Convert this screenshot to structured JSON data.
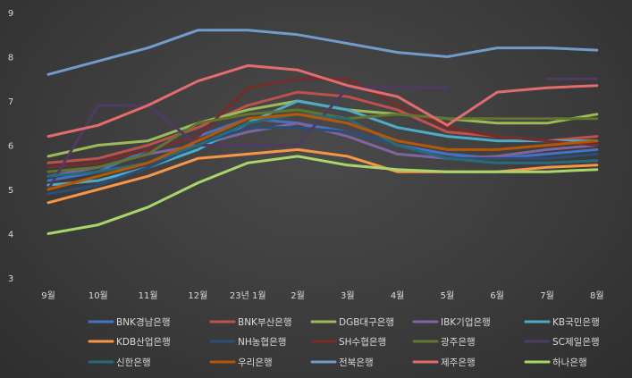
{
  "chart_data": {
    "type": "line",
    "title": "",
    "xlabel": "",
    "ylabel": "",
    "ylim": [
      3,
      9
    ],
    "yticks": [
      3,
      4,
      5,
      6,
      7,
      8,
      9
    ],
    "grid": false,
    "legend_position": "bottom",
    "categories": [
      "9월",
      "10월",
      "11월",
      "12월",
      "23년 1월",
      "2월",
      "3월",
      "4월",
      "5월",
      "6월",
      "7월",
      "8월"
    ],
    "series": [
      {
        "name": "BNK경남은행",
        "color": "#4472c4",
        "values": [
          5.2,
          5.4,
          5.9,
          6.2,
          6.6,
          6.5,
          6.3,
          6.0,
          5.8,
          5.7,
          5.8,
          5.9
        ]
      },
      {
        "name": "BNK부산은행",
        "color": "#c0504d",
        "values": [
          5.6,
          5.7,
          6.0,
          6.4,
          6.9,
          7.2,
          7.1,
          6.8,
          6.3,
          6.2,
          6.1,
          6.2
        ]
      },
      {
        "name": "DGB대구은행",
        "color": "#9bbb59",
        "values": [
          5.75,
          6.0,
          6.1,
          6.5,
          6.8,
          7.0,
          6.8,
          6.7,
          6.6,
          6.5,
          6.5,
          6.7
        ]
      },
      {
        "name": "IBK기업은행",
        "color": "#8064a2",
        "values": [
          5.3,
          5.5,
          5.8,
          6.0,
          6.3,
          6.5,
          6.2,
          5.8,
          5.7,
          5.75,
          5.9,
          6.0
        ]
      },
      {
        "name": "KB국민은행",
        "color": "#4bacc6",
        "values": [
          5.1,
          5.2,
          5.5,
          5.9,
          6.5,
          7.0,
          6.8,
          6.4,
          6.2,
          6.1,
          6.1,
          6.1
        ]
      },
      {
        "name": "KDB산업은행",
        "color": "#f79646",
        "values": [
          4.7,
          5.0,
          5.3,
          5.7,
          5.8,
          5.9,
          5.75,
          5.4,
          5.4,
          5.4,
          5.5,
          5.55
        ]
      },
      {
        "name": "NH농협은행",
        "color": "#2c4d75",
        "values": [
          4.9,
          5.1,
          5.5,
          6.0,
          6.4,
          6.4,
          6.3,
          6.0,
          5.7,
          5.7,
          5.7,
          5.8
        ]
      },
      {
        "name": "SH수협은행",
        "color": "#772c2a",
        "values": [
          5.5,
          5.6,
          5.9,
          6.2,
          7.3,
          7.5,
          7.5,
          6.9,
          6.4,
          6.2,
          6.1,
          6.0
        ]
      },
      {
        "name": "광주은행",
        "color": "#5f7530",
        "values": [
          5.4,
          5.5,
          5.8,
          6.5,
          6.7,
          6.8,
          6.6,
          6.7,
          6.6,
          6.6,
          6.6,
          6.6
        ]
      },
      {
        "name": "SC제일은행",
        "color": "#4d3b62",
        "values": [
          5.0,
          6.9,
          6.9,
          6.0,
          6.0,
          6.0,
          7.3,
          7.3,
          7.3,
          null,
          7.5,
          7.5
        ]
      },
      {
        "name": "신한은행",
        "color": "#276a7c",
        "values": [
          5.3,
          5.4,
          5.6,
          6.0,
          6.5,
          6.7,
          6.6,
          6.0,
          5.7,
          5.6,
          5.6,
          5.65
        ]
      },
      {
        "name": "우리은행",
        "color": "#b65708",
        "values": [
          5.0,
          5.3,
          5.6,
          6.1,
          6.6,
          6.7,
          6.5,
          6.1,
          5.9,
          5.9,
          6.0,
          6.1
        ]
      },
      {
        "name": "전북은행",
        "color": "#729aca",
        "values": [
          7.6,
          7.9,
          8.2,
          8.6,
          8.6,
          8.5,
          8.3,
          8.1,
          8.0,
          8.2,
          8.2,
          8.15
        ]
      },
      {
        "name": "제주은행",
        "color": "#e46c6c",
        "values": [
          6.2,
          6.45,
          6.9,
          7.45,
          7.8,
          7.7,
          7.35,
          7.1,
          6.45,
          7.2,
          7.3,
          7.35
        ]
      },
      {
        "name": "하나은행",
        "color": "#a9d66b",
        "values": [
          4.0,
          4.2,
          4.6,
          5.15,
          5.6,
          5.75,
          5.55,
          5.45,
          5.4,
          5.4,
          5.4,
          5.45
        ]
      }
    ]
  }
}
